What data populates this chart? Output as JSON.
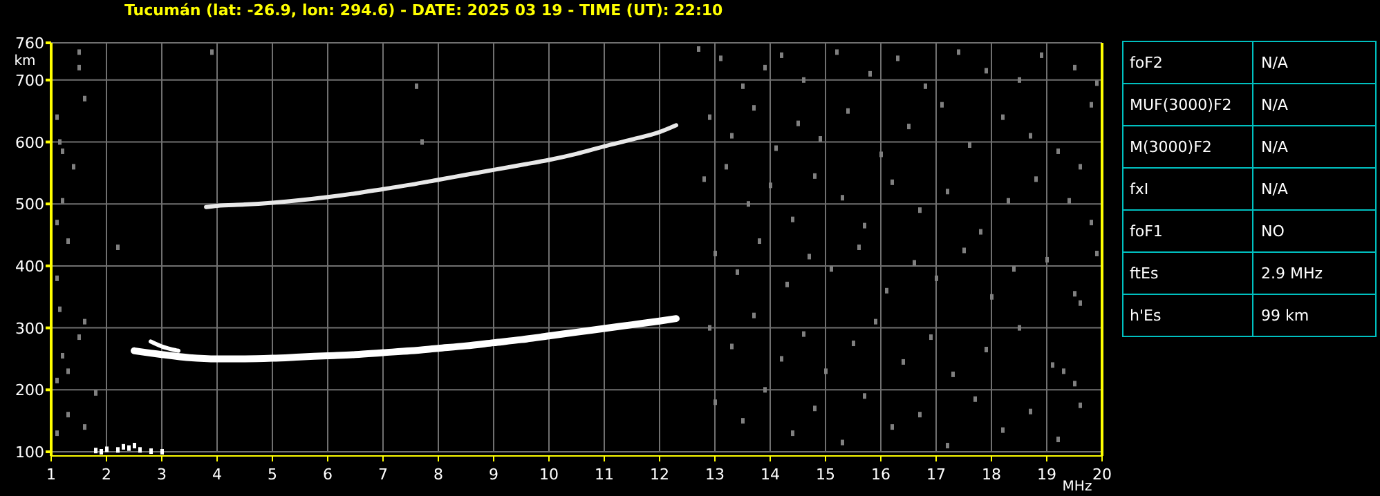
{
  "chart_data": [
    {
      "type": "scatter",
      "title": "Tucumán (lat: -26.9, lon: 294.6) - DATE: 2025 03 19 - TIME (UT): 22:10",
      "xlabel": "MHz",
      "ylabel": "km",
      "xlim": [
        1,
        20
      ],
      "xticks": [
        1,
        2,
        3,
        4,
        5,
        6,
        7,
        8,
        9,
        10,
        11,
        12,
        13,
        14,
        15,
        16,
        17,
        18,
        19,
        20
      ],
      "ylim": [
        100,
        760
      ],
      "yticks": [
        100,
        200,
        300,
        400,
        500,
        600,
        700,
        760
      ],
      "grid": true,
      "series": [
        {
          "type": "line",
          "color": "#ffffff",
          "line_style": "solid",
          "marker": "none",
          "x": [
            2.5,
            3,
            3.5,
            4,
            4.5,
            5,
            5.5,
            6,
            6.5,
            7,
            7.5,
            8,
            8.5,
            9,
            9.5,
            10,
            10.5,
            11,
            11.5,
            12,
            12.3
          ],
          "values": [
            263,
            257,
            252,
            250,
            250,
            251,
            253,
            255,
            257,
            260,
            263,
            267,
            271,
            276,
            281,
            287,
            293,
            299,
            305,
            311,
            315
          ]
        },
        {
          "type": "line",
          "color": "#ffffff",
          "line_style": "solid",
          "marker": "none",
          "x": [
            2.8,
            3.0,
            3.3
          ],
          "values": [
            278,
            270,
            263
          ]
        },
        {
          "type": "line",
          "color": "#e8e8e8",
          "line_style": "solid",
          "marker": "none",
          "x": [
            3.8,
            4,
            4.5,
            5,
            5.5,
            6,
            6.5,
            7,
            7.5,
            8,
            8.5,
            9,
            9.5,
            10,
            10.5,
            11,
            11.5,
            12,
            12.3
          ],
          "values": [
            495,
            497,
            499,
            502,
            506,
            511,
            517,
            524,
            531,
            539,
            547,
            555,
            563,
            571,
            581,
            593,
            604,
            616,
            627
          ]
        },
        {
          "type": "scatter",
          "color": "#ffffff",
          "marker": "square",
          "x": [
            1.8,
            1.9,
            2.0,
            2.2,
            2.3,
            2.4,
            2.5,
            2.6,
            2.8,
            3.0
          ],
          "values": [
            102,
            100,
            104,
            103,
            108,
            106,
            110,
            103,
            101,
            100
          ]
        },
        {
          "type": "scatter",
          "color": "#808080",
          "marker": "square",
          "x": [
            1.1,
            1.15,
            1.2,
            1.5,
            1.5,
            1.6,
            1.4,
            1.2,
            1.1,
            1.3,
            1.1,
            1.15,
            1.6,
            1.5,
            1.2,
            1.3,
            1.1,
            1.8,
            1.6,
            1.1,
            1.3,
            2.2,
            3.9,
            7.6,
            7.7,
            19.5,
            19.9,
            19.8,
            19.6,
            19.4,
            19.8,
            19.9,
            19.5,
            19.6,
            19.3,
            19.5,
            19.6,
            12.7,
            13.1,
            13.5,
            13.9,
            14.2,
            14.6,
            15.2,
            15.8,
            16.3,
            16.8,
            17.4,
            17.9,
            18.5,
            18.9,
            12.9,
            13.3,
            13.7,
            14.1,
            14.5,
            14.9,
            15.4,
            16.0,
            16.5,
            17.1,
            17.6,
            18.2,
            18.7,
            19.2,
            12.8,
            13.2,
            13.6,
            14.0,
            14.4,
            14.8,
            15.3,
            15.7,
            16.2,
            16.7,
            17.2,
            17.8,
            18.3,
            18.8,
            13.0,
            13.4,
            13.8,
            14.3,
            14.7,
            15.1,
            15.6,
            16.1,
            16.6,
            17.0,
            17.5,
            18.0,
            18.4,
            19.0,
            12.9,
            13.3,
            13.7,
            14.2,
            14.6,
            15.0,
            15.5,
            15.9,
            16.4,
            16.9,
            17.3,
            17.9,
            18.5,
            19.1,
            13.0,
            13.5,
            13.9,
            14.4,
            14.8,
            15.3,
            15.7,
            16.2,
            16.7,
            17.2,
            17.7,
            18.2,
            18.7,
            19.2
          ],
          "values": [
            640,
            600,
            585,
            720,
            745,
            670,
            560,
            505,
            470,
            440,
            380,
            330,
            310,
            285,
            255,
            230,
            215,
            195,
            140,
            130,
            160,
            430,
            745,
            690,
            600,
            720,
            695,
            660,
            560,
            505,
            470,
            420,
            355,
            340,
            230,
            210,
            175,
            750,
            735,
            690,
            720,
            740,
            700,
            745,
            710,
            735,
            690,
            745,
            715,
            700,
            740,
            640,
            610,
            655,
            590,
            630,
            605,
            650,
            580,
            625,
            660,
            595,
            640,
            610,
            585,
            540,
            560,
            500,
            530,
            475,
            545,
            510,
            465,
            535,
            490,
            520,
            455,
            505,
            540,
            420,
            390,
            440,
            370,
            415,
            395,
            430,
            360,
            405,
            380,
            425,
            350,
            395,
            410,
            300,
            270,
            320,
            250,
            290,
            230,
            275,
            310,
            245,
            285,
            225,
            265,
            300,
            240,
            180,
            150,
            200,
            130,
            170,
            115,
            190,
            140,
            160,
            110,
            185,
            135,
            165,
            120
          ]
        }
      ]
    },
    {
      "type": "other",
      "categories": [
        "foF2",
        "MUF(3000)F2",
        "M(3000)F2",
        "fxI",
        "foF1",
        "ftEs",
        "h'Es"
      ],
      "value_labels": [
        "N/A",
        "N/A",
        "N/A",
        "N/A",
        "NO",
        "2.9 MHz",
        "99 km"
      ]
    }
  ]
}
